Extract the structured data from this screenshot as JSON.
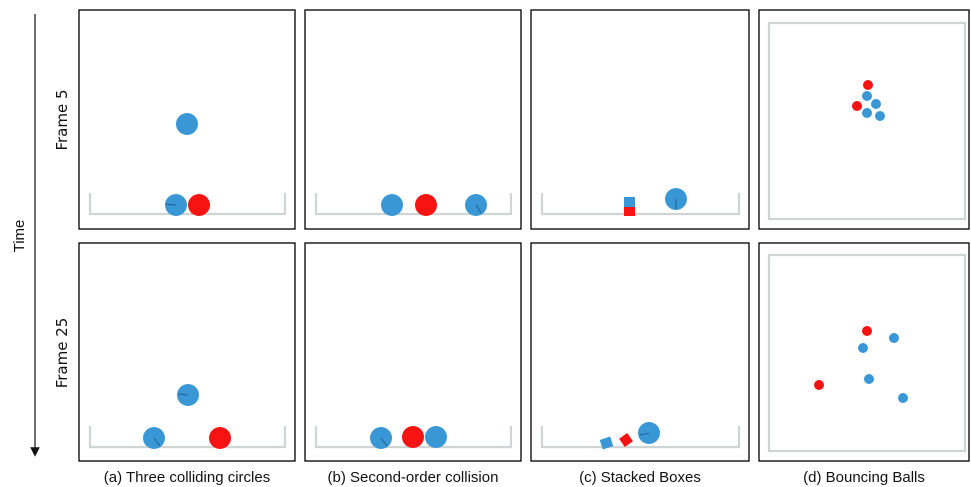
{
  "axis": {
    "time_label": "Time"
  },
  "rows": [
    {
      "label": "Frame 5"
    },
    {
      "label": "Frame 25"
    }
  ],
  "columns": [
    {
      "caption": "(a) Three colliding circles"
    },
    {
      "caption": "(b) Second-order collision"
    },
    {
      "caption": "(c) Stacked Boxes"
    },
    {
      "caption": "(d) Bouncing Balls"
    }
  ],
  "colors": {
    "blue": "#3a97d6",
    "red": "#f81313",
    "ground": "#cfd4d4",
    "border": "#111111"
  }
}
